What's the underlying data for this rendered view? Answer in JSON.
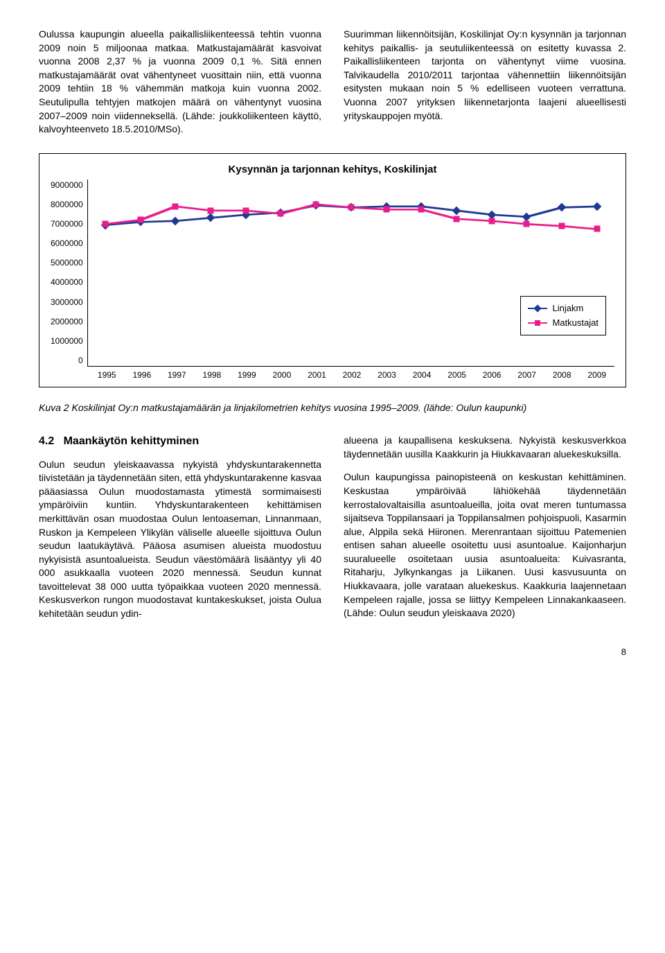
{
  "top_left_para": "Oulussa kaupungin alueella paikallisliikenteessä tehtin vuonna 2009 noin 5 miljoonaa matkaa. Matkustajamäärät kasvoivat vuonna 2008 2,37 % ja vuonna 2009 0,1 %. Sitä ennen matkustajamäärät ovat vähentyneet vuosittain niin, että vuonna 2009 tehtiin 18 % vähemmän matkoja kuin vuonna 2002. Seutulipulla tehtyjen matkojen määrä on vähentynyt vuosina 2007–2009 noin viidenneksellä. (Lähde: joukkoliikenteen käyttö, kalvoyhteenveto 18.5.2010/MSo).",
  "top_right_para": "Suurimman liikennöitsijän, Koskilinjat Oy:n kysynnän ja tarjonnan kehitys paikallis- ja seutuliikenteessä on esitetty kuvassa 2. Paikallisliikenteen tarjonta on vähentynyt viime vuosina. Talvikaudella 2010/2011 tarjontaa vähennettiin liikennöitsijän esitysten mukaan noin 5 % edelliseen vuoteen verrattuna. Vuonna 2007 yrityksen liikennetarjonta laajeni alueellisesti yrityskauppojen myötä.",
  "chart": {
    "title": "Kysynnän ja tarjonnan kehitys, Koskilinjat",
    "ymin": 0,
    "ymax": 9000000,
    "yticks": [
      "9000000",
      "8000000",
      "7000000",
      "6000000",
      "5000000",
      "4000000",
      "3000000",
      "2000000",
      "1000000",
      "0"
    ],
    "x_labels": [
      "1995",
      "1996",
      "1997",
      "1998",
      "1999",
      "2000",
      "2001",
      "2002",
      "2003",
      "2004",
      "2005",
      "2006",
      "2007",
      "2008",
      "2009"
    ],
    "series": [
      {
        "name": "Linjakm",
        "color": "#1f3a93",
        "marker": "diamond",
        "values": [
          6800000,
          6950000,
          7000000,
          7150000,
          7300000,
          7400000,
          7750000,
          7650000,
          7700000,
          7700000,
          7500000,
          7300000,
          7200000,
          7650000,
          7700000
        ]
      },
      {
        "name": "Matkustajat",
        "color": "#e91e8c",
        "marker": "square",
        "values": [
          6850000,
          7050000,
          7700000,
          7500000,
          7500000,
          7350000,
          7800000,
          7650000,
          7550000,
          7550000,
          7100000,
          7000000,
          6850000,
          6750000,
          6600000
        ]
      }
    ],
    "legend": [
      "Linjakm",
      "Matkustajat"
    ],
    "line_width": 2,
    "marker_size": 9,
    "background": "#ffffff",
    "border_color": "#000000"
  },
  "caption": "Kuva 2 Koskilinjat Oy:n matkustajamäärän ja linjakilometrien kehitys vuosina 1995–2009. (lähde: Oulun kaupunki)",
  "section_num": "4.2",
  "section_title": "Maankäytön kehittyminen",
  "bottom_left_para": "Oulun seudun yleiskaavassa nykyistä yhdyskuntarakennetta tiivistetään ja täydennetään siten, että yhdyskuntarakenne kasvaa pääasiassa Oulun muodostamasta ytimestä sormimaisesti ympäröiviin kuntiin. Yhdyskuntarakenteen kehittämisen merkittävän osan muodostaa Oulun lentoaseman, Linnanmaan, Ruskon ja Kempeleen Ylikylän väliselle alueelle sijoittuva Oulun seudun laatukäytävä. Pääosa asumisen alueista muodostuu nykyisistä asuntoalueista. Seudun väestömäärä lisääntyy yli 40 000 asukkaalla vuoteen 2020 mennessä. Seudun kunnat tavoittelevat 38 000 uutta työpaikkaa vuoteen 2020 mennessä. Keskusverkon rungon muodostavat kuntakeskukset, joista Oulua kehitetään seudun ydin-",
  "bottom_right_para1": "alueena ja kaupallisena keskuksena. Nykyistä keskusverkkoa täydennetään uusilla Kaakkurin ja Hiukkavaaran aluekeskuksilla.",
  "bottom_right_para2": "Oulun kaupungissa painopisteenä on keskustan kehittäminen. Keskustaa ympäröivää lähiökehää täydennetään kerrostalovaltaisilla asuntoalueilla, joita ovat meren tuntumassa sijaitseva Toppilansaari ja Toppilansalmen pohjoispuoli, Kasarmin alue, Alppila sekä Hiironen. Merenrantaan sijoittuu Patemenien entisen sahan alueelle osoitettu uusi asuntoalue. Kaijonharjun suuralueelle osoitetaan uusia asuntoalueita: Kuivasranta, Ritaharju, Jylkynkangas ja Liikanen. Uusi kasvusuunta on Hiukkavaara, jolle varataan aluekeskus. Kaakkuria laajennetaan Kempeleen rajalle, jossa se liittyy Kempeleen Linnakankaaseen. (Lähde: Oulun seudun yleiskaava 2020)",
  "page_number": "8"
}
